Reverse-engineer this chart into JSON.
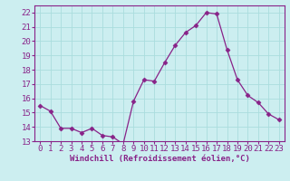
{
  "x": [
    0,
    1,
    2,
    3,
    4,
    5,
    6,
    7,
    8,
    9,
    10,
    11,
    12,
    13,
    14,
    15,
    16,
    17,
    18,
    19,
    20,
    21,
    22,
    23
  ],
  "y": [
    15.5,
    15.1,
    13.9,
    13.9,
    13.6,
    13.9,
    13.4,
    13.3,
    12.8,
    15.8,
    17.3,
    17.2,
    18.5,
    19.7,
    20.6,
    21.1,
    22.0,
    21.9,
    19.4,
    17.3,
    16.2,
    15.7,
    14.9,
    14.5
  ],
  "line_color": "#882288",
  "marker": "D",
  "marker_size": 2.5,
  "bg_color": "#cceef0",
  "grid_color": "#aadddd",
  "xlabel": "Windchill (Refroidissement éolien,°C)",
  "ylim": [
    13,
    22.5
  ],
  "yticks": [
    13,
    14,
    15,
    16,
    17,
    18,
    19,
    20,
    21,
    22
  ],
  "xlim": [
    -0.5,
    23.5
  ],
  "xticks": [
    0,
    1,
    2,
    3,
    4,
    5,
    6,
    7,
    8,
    9,
    10,
    11,
    12,
    13,
    14,
    15,
    16,
    17,
    18,
    19,
    20,
    21,
    22,
    23
  ],
  "xlabel_color": "#882288",
  "tick_color": "#882288",
  "spine_color": "#882288",
  "tick_fontsize": 6.5,
  "xlabel_fontsize": 6.5
}
